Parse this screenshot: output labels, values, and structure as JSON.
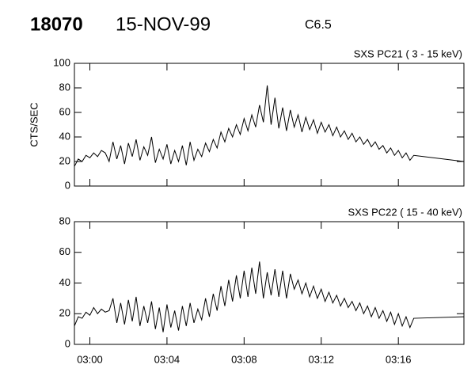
{
  "header": {
    "id": "18070",
    "date": "15-NOV-99",
    "class": "C6.5"
  },
  "chart_data": [
    {
      "type": "line",
      "label": "SXS PC21  (  3 - 15 keV)",
      "ylabel": "CTS/SEC",
      "color": "#000000",
      "xlim": [
        -0.8,
        19.4
      ],
      "ylim": [
        0,
        100
      ],
      "xticks": [
        0,
        4,
        8,
        12,
        16
      ],
      "yticks": [
        0,
        20,
        40,
        60,
        80,
        100
      ],
      "x": [
        -0.8,
        -0.6,
        -0.4,
        -0.2,
        0,
        0.2,
        0.4,
        0.6,
        0.8,
        1.0,
        1.2,
        1.4,
        1.6,
        1.8,
        2.0,
        2.2,
        2.4,
        2.6,
        2.8,
        3.0,
        3.2,
        3.4,
        3.6,
        3.8,
        4.0,
        4.2,
        4.4,
        4.6,
        4.8,
        5.0,
        5.2,
        5.4,
        5.6,
        5.8,
        6.0,
        6.2,
        6.4,
        6.6,
        6.8,
        7.0,
        7.2,
        7.4,
        7.6,
        7.8,
        8.0,
        8.2,
        8.4,
        8.6,
        8.8,
        9.0,
        9.2,
        9.4,
        9.6,
        9.8,
        10.0,
        10.2,
        10.4,
        10.6,
        10.8,
        11.0,
        11.2,
        11.4,
        11.6,
        11.8,
        12.0,
        12.2,
        12.4,
        12.6,
        12.8,
        13.0,
        13.2,
        13.4,
        13.6,
        13.8,
        14.0,
        14.2,
        14.4,
        14.6,
        14.8,
        15.0,
        15.2,
        15.4,
        15.6,
        15.8,
        16.0,
        16.2,
        16.4,
        16.6,
        16.8,
        19.4
      ],
      "values": [
        16,
        22,
        20,
        25,
        23,
        27,
        24,
        29,
        27,
        20,
        36,
        22,
        33,
        18,
        35,
        24,
        38,
        21,
        32,
        25,
        40,
        19,
        30,
        22,
        34,
        18,
        29,
        20,
        33,
        17,
        36,
        21,
        30,
        24,
        35,
        28,
        38,
        31,
        44,
        36,
        47,
        40,
        50,
        42,
        55,
        45,
        58,
        48,
        66,
        52,
        82,
        50,
        72,
        47,
        64,
        45,
        62,
        48,
        58,
        44,
        56,
        46,
        54,
        43,
        52,
        44,
        50,
        41,
        48,
        40,
        45,
        38,
        43,
        36,
        40,
        34,
        38,
        32,
        36,
        30,
        33,
        27,
        31,
        25,
        29,
        23,
        27,
        21,
        25,
        20
      ]
    },
    {
      "type": "line",
      "label": "SXS PC22  ( 15 - 40 keV)",
      "color": "#000000",
      "xlim": [
        -0.8,
        19.4
      ],
      "ylim": [
        0,
        80
      ],
      "xticks": [
        {
          "value": 0,
          "label": "03:00"
        },
        {
          "value": 4,
          "label": "03:04"
        },
        {
          "value": 8,
          "label": "03:08"
        },
        {
          "value": 12,
          "label": "03:12"
        },
        {
          "value": 16,
          "label": "03:16"
        }
      ],
      "yticks": [
        0,
        20,
        40,
        60,
        80
      ],
      "x": [
        -0.8,
        -0.6,
        -0.4,
        -0.2,
        0,
        0.2,
        0.4,
        0.6,
        0.8,
        1.0,
        1.2,
        1.4,
        1.6,
        1.8,
        2.0,
        2.2,
        2.4,
        2.6,
        2.8,
        3.0,
        3.2,
        3.4,
        3.6,
        3.8,
        4.0,
        4.2,
        4.4,
        4.6,
        4.8,
        5.0,
        5.2,
        5.4,
        5.6,
        5.8,
        6.0,
        6.2,
        6.4,
        6.6,
        6.8,
        7.0,
        7.2,
        7.4,
        7.6,
        7.8,
        8.0,
        8.2,
        8.4,
        8.6,
        8.8,
        9.0,
        9.2,
        9.4,
        9.6,
        9.8,
        10.0,
        10.2,
        10.4,
        10.6,
        10.8,
        11.0,
        11.2,
        11.4,
        11.6,
        11.8,
        12.0,
        12.2,
        12.4,
        12.6,
        12.8,
        13.0,
        13.2,
        13.4,
        13.6,
        13.8,
        14.0,
        14.2,
        14.4,
        14.6,
        14.8,
        15.0,
        15.2,
        15.4,
        15.6,
        15.8,
        16.0,
        16.2,
        16.4,
        16.6,
        16.8,
        19.4
      ],
      "values": [
        12,
        18,
        17,
        21,
        19,
        24,
        20,
        23,
        21,
        22,
        30,
        14,
        27,
        13,
        29,
        15,
        31,
        12,
        25,
        14,
        28,
        10,
        24,
        8,
        26,
        11,
        22,
        9,
        25,
        12,
        27,
        14,
        23,
        16,
        30,
        18,
        33,
        22,
        38,
        25,
        42,
        28,
        45,
        30,
        48,
        31,
        50,
        33,
        54,
        30,
        47,
        32,
        49,
        31,
        48,
        30,
        46,
        36,
        42,
        33,
        40,
        31,
        38,
        30,
        36,
        28,
        34,
        27,
        32,
        25,
        30,
        24,
        28,
        22,
        27,
        20,
        25,
        18,
        24,
        17,
        22,
        15,
        21,
        13,
        20,
        12,
        18,
        11,
        17,
        18
      ]
    }
  ]
}
